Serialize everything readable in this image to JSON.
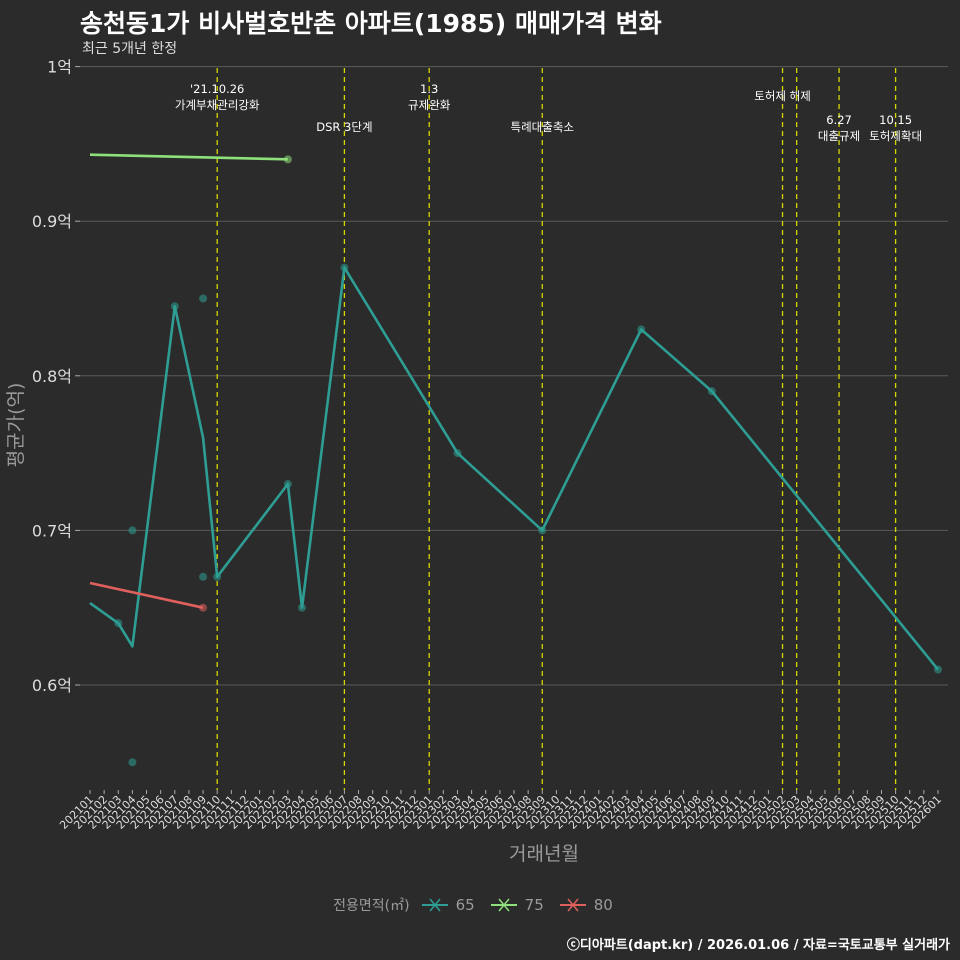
{
  "chart_data": {
    "type": "line",
    "title": "송천동1가 비사벌호반촌 아파트(1985) 매매가격 변화",
    "subtitle": "최근 5개년 한정",
    "xlabel": "거래년월",
    "ylabel": "평균가(억)",
    "y_ticks": [
      0.6,
      0.7,
      0.8,
      0.9,
      1.0
    ],
    "y_tick_labels": [
      "0.6억",
      "0.7억",
      "0.8억",
      "0.9억",
      "1억"
    ],
    "ylim": [
      0.53,
      1.0
    ],
    "categories": [
      "202101",
      "202102",
      "202103",
      "202104",
      "202105",
      "202106",
      "202107",
      "202108",
      "202109",
      "202110",
      "202111",
      "202112",
      "202201",
      "202202",
      "202203",
      "202204",
      "202205",
      "202206",
      "202207",
      "202208",
      "202209",
      "202210",
      "202211",
      "202212",
      "202301",
      "202302",
      "202303",
      "202304",
      "202305",
      "202306",
      "202307",
      "202308",
      "202309",
      "202310",
      "202311",
      "202312",
      "202401",
      "202402",
      "202403",
      "202404",
      "202405",
      "202406",
      "202407",
      "202408",
      "202409",
      "202410",
      "202411",
      "202412",
      "202501",
      "202502",
      "202503",
      "202504",
      "202505",
      "202506",
      "202507",
      "202508",
      "202509",
      "202510",
      "202511",
      "202512",
      "202601"
    ],
    "legend_title": "전용면적(㎡)",
    "series": [
      {
        "name": "65",
        "color": "#2e9e94",
        "line": [
          [
            "202101",
            0.653
          ],
          [
            "202103",
            0.64
          ],
          [
            "202104",
            0.625
          ],
          [
            "202107",
            0.845
          ],
          [
            "202109",
            0.76
          ],
          [
            "202110",
            0.67
          ],
          [
            "202203",
            0.73
          ],
          [
            "202204",
            0.65
          ],
          [
            "202207",
            0.87
          ],
          [
            "202303",
            0.75
          ],
          [
            "202309",
            0.7
          ],
          [
            "202404",
            0.83
          ],
          [
            "202409",
            0.79
          ],
          [
            "202601",
            0.61
          ]
        ],
        "points": [
          [
            "202103",
            0.64
          ],
          [
            "202104",
            0.7
          ],
          [
            "202104",
            0.55
          ],
          [
            "202107",
            0.845
          ],
          [
            "202109",
            0.85
          ],
          [
            "202109",
            0.67
          ],
          [
            "202110",
            0.67
          ],
          [
            "202203",
            0.73
          ],
          [
            "202204",
            0.65
          ],
          [
            "202207",
            0.87
          ],
          [
            "202303",
            0.75
          ],
          [
            "202309",
            0.7
          ],
          [
            "202404",
            0.83
          ],
          [
            "202409",
            0.79
          ],
          [
            "202601",
            0.61
          ]
        ]
      },
      {
        "name": "75",
        "color": "#8ee07a",
        "line": [
          [
            "202101",
            0.943
          ],
          [
            "202203",
            0.94
          ]
        ],
        "points": [
          [
            "202203",
            0.94
          ]
        ]
      },
      {
        "name": "80",
        "color": "#e0605e",
        "line": [
          [
            "202101",
            0.666
          ],
          [
            "202109",
            0.65
          ]
        ],
        "points": [
          [
            "202109",
            0.65
          ]
        ]
      }
    ],
    "annotations": [
      {
        "x": "202110",
        "lines": [
          "'21.10.26",
          "가계부채관리강화"
        ],
        "level": 0
      },
      {
        "x": "202207",
        "lines": [
          "DSR 3단계"
        ],
        "level": 2
      },
      {
        "x": "202301",
        "lines": [
          "1.3",
          "규제완화"
        ],
        "level": 0
      },
      {
        "x": "202309",
        "lines": [
          "특례대출축소"
        ],
        "level": 2
      },
      {
        "x": "202502",
        "lines": [
          "토허제 해제"
        ],
        "level": 1
      },
      {
        "x": "202503",
        "lines": [],
        "level": 1
      },
      {
        "x": "202506",
        "lines": [
          "6.27",
          "대출규제"
        ],
        "level": 3
      },
      {
        "x": "202510",
        "lines": [
          "10.15",
          "토허제확대"
        ],
        "level": 3
      }
    ]
  },
  "footer": "ⓒ디아파트(dapt.kr) / 2026.01.06 / 자료=국토교통부 실거래가"
}
